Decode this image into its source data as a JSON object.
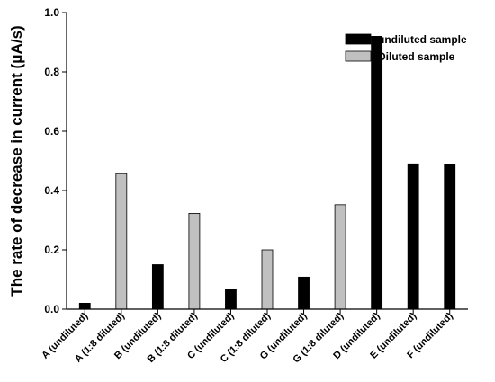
{
  "chart_data": {
    "type": "bar",
    "categories": [
      "A (undiluted)",
      "A (1:8 diluted)",
      "B (undiluted)",
      "B (1:8 diluted)",
      "C (undiluted)",
      "C (1:8 diluted)",
      "G (undiluted)",
      "G (1:8 diluted)",
      "D (undiluted)",
      "E (undiluted)",
      "F (undiluted)"
    ],
    "series": [
      {
        "name": "undiluted sample",
        "color": "#000000",
        "values": [
          0.02,
          null,
          0.15,
          null,
          0.068,
          null,
          0.108,
          null,
          0.92,
          0.49,
          0.488
        ]
      },
      {
        "name": "Diluted sample",
        "color": "#c0c0c0",
        "values": [
          null,
          0.457,
          null,
          0.323,
          null,
          0.2,
          null,
          0.352,
          null,
          null,
          null
        ]
      }
    ],
    "ylabel": "The rate of decrease in current (μA/s)",
    "xlabel": "",
    "ylim": [
      0,
      1.0
    ],
    "yticks": [
      0.0,
      0.2,
      0.4,
      0.6,
      0.8,
      1.0
    ],
    "grid": false,
    "legend_position": "top-right"
  }
}
